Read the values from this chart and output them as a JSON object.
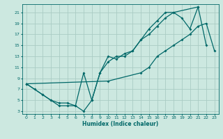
{
  "xlabel": "Humidex (Indice chaleur)",
  "bg_color": "#cce8e0",
  "grid_color": "#aaccc4",
  "line_color": "#006868",
  "xlim": [
    -0.5,
    23.5
  ],
  "ylim": [
    2.5,
    22.5
  ],
  "xticks": [
    0,
    1,
    2,
    3,
    4,
    5,
    6,
    7,
    8,
    9,
    10,
    11,
    12,
    13,
    14,
    15,
    16,
    17,
    18,
    19,
    20,
    21,
    22,
    23
  ],
  "yticks": [
    3,
    5,
    7,
    9,
    11,
    13,
    15,
    17,
    19,
    21
  ],
  "line1_x": [
    0,
    1,
    2,
    3,
    4,
    5,
    6,
    7,
    8,
    9,
    10,
    11,
    12,
    13,
    14,
    15,
    16,
    17,
    18,
    21
  ],
  "line1_y": [
    8,
    7,
    6,
    5,
    4,
    4,
    4,
    3,
    5,
    10,
    12,
    13,
    13,
    14,
    16,
    18,
    19.5,
    21,
    21,
    22
  ],
  "line2_x": [
    0,
    2,
    3,
    4,
    5,
    6,
    7,
    8,
    9,
    10,
    11,
    12,
    13,
    14,
    15,
    16,
    17,
    18,
    19,
    20,
    21,
    22
  ],
  "line2_y": [
    8,
    6,
    5,
    4.5,
    4.5,
    4,
    10,
    5,
    10,
    13,
    12.5,
    13.5,
    14,
    16,
    17,
    18.5,
    20,
    21,
    20,
    18,
    22,
    15
  ],
  "line3_x": [
    0,
    10,
    14,
    15,
    16,
    17,
    18,
    19,
    20,
    21,
    22,
    23
  ],
  "line3_y": [
    8,
    8.5,
    10,
    11,
    13,
    14,
    15,
    16,
    17,
    18.5,
    19,
    14
  ]
}
